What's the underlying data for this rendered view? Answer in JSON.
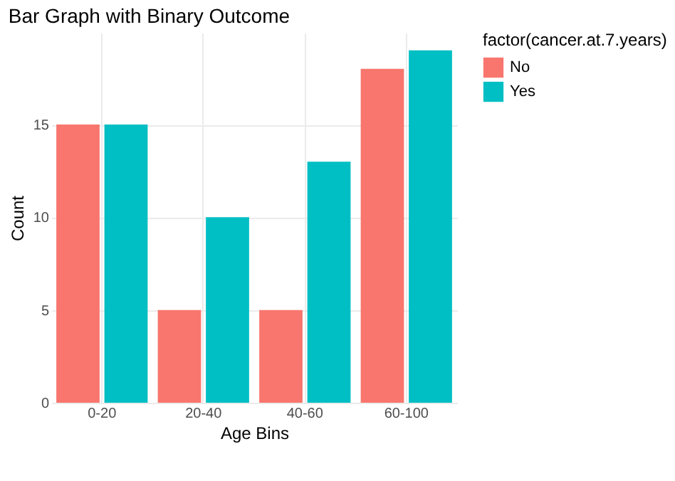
{
  "chart_data": {
    "type": "bar",
    "title": "Bar Graph with Binary Outcome",
    "xlabel": "Age Bins",
    "ylabel": "Count",
    "legend_title": "factor(cancer.at.7.years)",
    "categories": [
      "0-20",
      "20-40",
      "40-60",
      "60-100"
    ],
    "series": [
      {
        "name": "No",
        "color": "#f8766d",
        "values": [
          15,
          5,
          5,
          18
        ]
      },
      {
        "name": "Yes",
        "color": "#00bfc4",
        "values": [
          15,
          10,
          13,
          19
        ]
      }
    ],
    "ylim": [
      0,
      19.95
    ],
    "yticks": [
      0,
      5,
      10,
      15
    ],
    "grid": true,
    "legend": "right"
  }
}
